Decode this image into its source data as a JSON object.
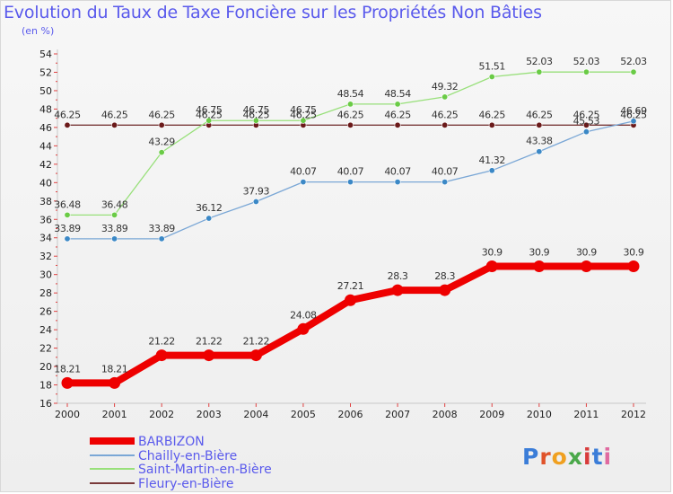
{
  "chart_data": {
    "type": "line",
    "title": "Evolution du Taux de Taxe Foncière sur les Propriétés Non Bâties",
    "unit_label": "(en %)",
    "xlabel": "",
    "ylabel": "",
    "x": [
      "2000",
      "2001",
      "2002",
      "2003",
      "2004",
      "2005",
      "2006",
      "2007",
      "2008",
      "2009",
      "2010",
      "2011",
      "2012"
    ],
    "ylim": [
      16,
      54
    ],
    "yticks": [
      16,
      18,
      20,
      22,
      24,
      26,
      28,
      30,
      32,
      34,
      36,
      38,
      40,
      42,
      44,
      46,
      48,
      50,
      52,
      54
    ],
    "grid": false,
    "series": [
      {
        "name": "BARBIZON",
        "color": "#ee0000",
        "width": 8,
        "values": [
          18.21,
          18.21,
          21.22,
          21.22,
          21.22,
          24.08,
          27.21,
          28.3,
          28.3,
          30.9,
          30.9,
          30.9,
          30.9
        ],
        "labels": [
          "18.21",
          "18.21",
          "21.22",
          "21.22",
          "21.22",
          "24.08",
          "27.21",
          "28.3",
          "28.3",
          "30.9",
          "30.9",
          "30.9",
          "30.9"
        ]
      },
      {
        "name": "Chailly-en-Bière",
        "color": "#7aa7d6",
        "marker": "#3b88c6",
        "width": 1.3,
        "values": [
          33.89,
          33.89,
          33.89,
          36.12,
          37.93,
          40.07,
          40.07,
          40.07,
          40.07,
          41.32,
          43.38,
          45.53,
          46.69
        ],
        "labels": [
          "33.89",
          "33.89",
          "33.89",
          "36.12",
          "37.93",
          "40.07",
          "40.07",
          "40.07",
          "40.07",
          "41.32",
          "43.38",
          "45.53",
          "46.69"
        ]
      },
      {
        "name": "Saint-Martin-en-Bière",
        "color": "#98e07a",
        "marker": "#6acb46",
        "width": 1.3,
        "values": [
          36.48,
          36.48,
          43.29,
          46.75,
          46.75,
          46.75,
          48.54,
          48.54,
          49.32,
          51.51,
          52.03,
          52.03,
          52.03
        ],
        "labels": [
          "36.48",
          "36.48",
          "43.29",
          "46.75",
          "46.75",
          "46.75",
          "48.54",
          "48.54",
          "49.32",
          "51.51",
          "52.03",
          "52.03",
          "52.03"
        ]
      },
      {
        "name": "Fleury-en-Bière",
        "color": "#7a3a3a",
        "marker": "#6b1a1a",
        "width": 1.3,
        "values": [
          46.25,
          46.25,
          46.25,
          46.25,
          46.25,
          46.25,
          46.25,
          46.25,
          46.25,
          46.25,
          46.25,
          46.25,
          46.25
        ],
        "labels": [
          "46.25",
          "46.25",
          "46.25",
          "46.25",
          "46.25",
          "46.25",
          "46.25",
          "46.25",
          "46.25",
          "46.25",
          "46.25",
          "46.25",
          "46.25"
        ]
      }
    ],
    "legend": {
      "position": "bottom-left",
      "items": [
        "BARBIZON",
        "Chailly-en-Bière",
        "Saint-Martin-en-Bière",
        "Fleury-en-Bière"
      ]
    }
  },
  "brand": {
    "text": "Proxiti"
  }
}
